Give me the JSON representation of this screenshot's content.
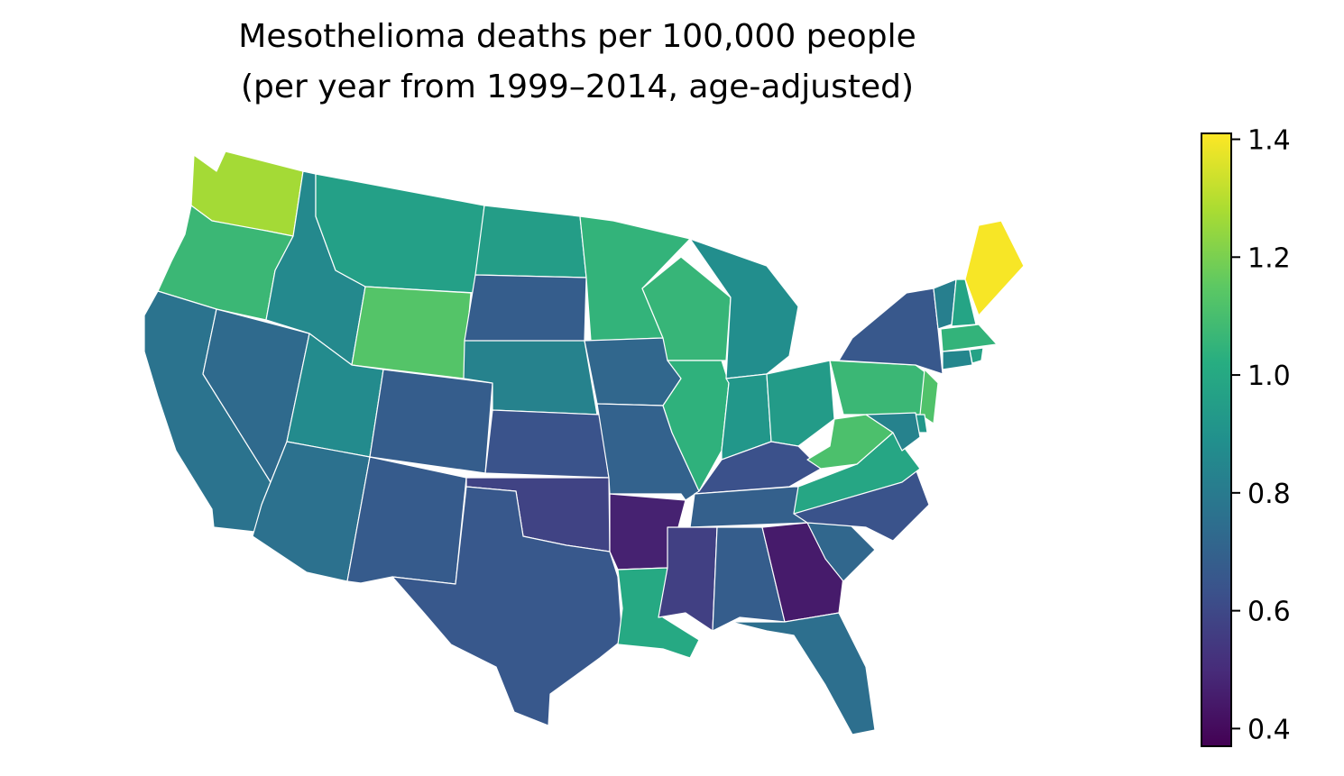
{
  "chart_data": {
    "type": "choropleth",
    "title": "Mesothelioma deaths per 100,000 people",
    "subtitle": "(per year from 1999–2014, age-adjusted)",
    "values": [
      1.27,
      1.07,
      0.77,
      0.73,
      0.86,
      0.96,
      1.13,
      0.87,
      0.68,
      0.76,
      0.67,
      0.95,
      0.68,
      0.83,
      0.64,
      0.58,
      0.66,
      1.05,
      0.72,
      0.7,
      0.47,
      1.0,
      1.06,
      1.04,
      0.88,
      0.92,
      0.94,
      0.63,
      0.69,
      0.57,
      0.68,
      0.45,
      0.75,
      0.72,
      0.64,
      0.99,
      1.11,
      1.07,
      0.66,
      0.82,
      0.98,
      1.4,
      1.05,
      0.85,
      0.97,
      1.12,
      0.92,
      0.83
    ],
    "colormap": "viridis",
    "ylim": [
      0.37,
      1.41
    ],
    "yticks": [
      0.4,
      0.6,
      0.8,
      {
        "value": 1,
        "label": "1.0"
      },
      1.2,
      1.4
    ]
  }
}
